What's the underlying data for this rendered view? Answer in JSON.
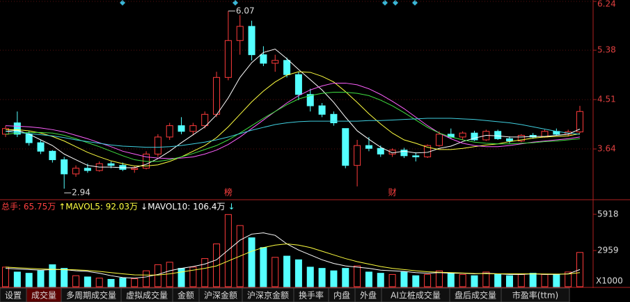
{
  "chart_data": [
    {
      "type": "candlestick",
      "open": [
        3.9,
        4.1,
        3.9,
        3.75,
        3.6,
        3.45,
        3.2,
        3.3,
        3.26,
        3.38,
        3.35,
        3.28,
        3.3,
        3.55,
        3.85,
        4.05,
        3.95,
        4.05,
        4.25,
        4.9,
        5.55,
        5.8,
        5.3,
        5.15,
        5.2,
        4.95,
        4.6,
        4.4,
        4.25,
        4.0,
        3.35,
        3.7,
        3.65,
        3.55,
        3.62,
        3.52,
        3.5,
        3.7,
        3.9,
        3.85,
        3.92,
        3.8,
        3.95,
        3.82,
        3.78,
        3.88,
        3.85,
        3.95,
        3.9,
        3.94
      ],
      "high": [
        4.05,
        4.3,
        3.95,
        3.8,
        3.62,
        3.5,
        3.35,
        3.38,
        3.42,
        3.42,
        3.4,
        3.34,
        3.6,
        3.9,
        4.1,
        4.2,
        4.1,
        4.3,
        5.0,
        6.07,
        6.0,
        5.9,
        5.45,
        5.3,
        5.25,
        5.0,
        4.7,
        4.45,
        4.3,
        4.0,
        3.8,
        3.85,
        3.7,
        3.65,
        3.66,
        3.58,
        3.72,
        3.95,
        4.0,
        3.95,
        3.96,
        3.98,
        3.98,
        3.86,
        3.9,
        3.92,
        3.98,
        4.0,
        3.98,
        4.4
      ],
      "low": [
        3.85,
        3.85,
        3.7,
        3.55,
        3.4,
        2.94,
        3.15,
        3.22,
        3.24,
        3.3,
        3.25,
        3.22,
        3.28,
        3.5,
        3.8,
        3.9,
        3.88,
        4.0,
        4.2,
        4.85,
        5.3,
        5.2,
        5.1,
        5.0,
        4.9,
        4.5,
        4.3,
        4.2,
        4.05,
        3.3,
        2.98,
        3.6,
        3.5,
        3.5,
        3.48,
        3.42,
        3.48,
        3.68,
        3.82,
        3.8,
        3.78,
        3.78,
        3.8,
        3.74,
        3.76,
        3.82,
        3.84,
        3.88,
        3.86,
        3.92
      ],
      "close": [
        4.0,
        3.9,
        3.75,
        3.6,
        3.45,
        3.2,
        3.3,
        3.26,
        3.38,
        3.35,
        3.28,
        3.3,
        3.55,
        3.85,
        4.05,
        3.95,
        4.05,
        4.25,
        4.9,
        5.55,
        5.8,
        5.3,
        5.15,
        5.2,
        4.95,
        4.6,
        4.4,
        4.25,
        4.1,
        3.35,
        3.7,
        3.65,
        3.55,
        3.62,
        3.52,
        3.5,
        3.7,
        3.9,
        3.85,
        3.92,
        3.8,
        3.95,
        3.82,
        3.78,
        3.88,
        3.85,
        3.95,
        3.9,
        3.94,
        4.3
      ],
      "up_color": "#ff3b3b",
      "down_color": "#54ffff",
      "lines": [
        {
          "color": "#ffffff",
          "values": [
            3.95,
            3.97,
            3.9,
            3.8,
            3.7,
            3.55,
            3.45,
            3.35,
            3.32,
            3.32,
            3.31,
            3.31,
            3.37,
            3.47,
            3.6,
            3.75,
            3.89,
            4.03,
            4.24,
            4.54,
            4.9,
            5.16,
            5.34,
            5.4,
            5.23,
            5.04,
            4.86,
            4.68,
            4.46,
            4.2,
            3.96,
            3.81,
            3.67,
            3.57,
            3.6,
            3.57,
            3.58,
            3.65,
            3.69,
            3.77,
            3.83,
            3.88,
            3.87,
            3.85,
            3.85,
            3.86,
            3.86,
            3.88,
            3.9,
            3.99
          ]
        },
        {
          "color": "#ffff40",
          "values": [
            3.98,
            3.98,
            3.96,
            3.92,
            3.86,
            3.78,
            3.68,
            3.58,
            3.5,
            3.43,
            3.38,
            3.34,
            3.34,
            3.36,
            3.42,
            3.5,
            3.6,
            3.7,
            3.84,
            4.03,
            4.25,
            4.47,
            4.66,
            4.82,
            4.94,
            5.0,
            4.99,
            4.92,
            4.82,
            4.65,
            4.46,
            4.26,
            4.08,
            3.92,
            3.8,
            3.74,
            3.67,
            3.63,
            3.63,
            3.65,
            3.68,
            3.71,
            3.73,
            3.77,
            3.8,
            3.83,
            3.85,
            3.86,
            3.87,
            3.91
          ]
        },
        {
          "color": "#ff60ff",
          "values": [
            4.05,
            4.04,
            4.03,
            4.01,
            3.98,
            3.94,
            3.88,
            3.82,
            3.75,
            3.68,
            3.6,
            3.55,
            3.5,
            3.48,
            3.47,
            3.48,
            3.5,
            3.55,
            3.62,
            3.72,
            3.85,
            4.0,
            4.15,
            4.3,
            4.45,
            4.58,
            4.68,
            4.75,
            4.8,
            4.8,
            4.77,
            4.7,
            4.6,
            4.48,
            4.35,
            4.2,
            4.05,
            3.92,
            3.82,
            3.74,
            3.7,
            3.68,
            3.68,
            3.7,
            3.73,
            3.76,
            3.78,
            3.8,
            3.82,
            3.85
          ]
        },
        {
          "color": "#40e040",
          "values": [
            3.9,
            3.92,
            3.93,
            3.93,
            3.92,
            3.88,
            3.82,
            3.75,
            3.68,
            3.6,
            3.52,
            3.45,
            3.42,
            3.42,
            3.45,
            3.5,
            3.56,
            3.63,
            3.7,
            3.8,
            3.92,
            4.05,
            4.18,
            4.3,
            4.42,
            4.52,
            4.58,
            4.62,
            4.64,
            4.64,
            4.62,
            4.58,
            4.5,
            4.4,
            4.28,
            4.15,
            4.02,
            3.92,
            3.85,
            3.8,
            3.76,
            3.74,
            3.73,
            3.73,
            3.74,
            3.75,
            3.77,
            3.78,
            3.8,
            3.82
          ]
        },
        {
          "color": "#40d0e0",
          "values": [
            3.95,
            3.93,
            3.91,
            3.89,
            3.87,
            3.84,
            3.8,
            3.77,
            3.74,
            3.71,
            3.69,
            3.68,
            3.67,
            3.67,
            3.68,
            3.7,
            3.73,
            3.76,
            3.8,
            3.85,
            3.91,
            3.97,
            4.02,
            4.07,
            4.1,
            4.12,
            4.13,
            4.13,
            4.13,
            4.13,
            4.13,
            4.14,
            4.14,
            4.15,
            4.16,
            4.17,
            4.18,
            4.18,
            4.18,
            4.17,
            4.16,
            4.14,
            4.12,
            4.1,
            4.07,
            4.03,
            3.99,
            3.95,
            3.92,
            3.9
          ]
        }
      ],
      "max_label": "6.07",
      "min_label": "2.94",
      "events": [
        {
          "index": 19,
          "label": "榜"
        },
        {
          "index": 33,
          "label": "财"
        }
      ],
      "ylim": [
        2.77,
        6.24
      ],
      "yticks": [
        6.24,
        5.38,
        4.51,
        3.64
      ],
      "grid": true
    },
    {
      "type": "volume",
      "legend": [
        {
          "label": "总手: 65.75万",
          "color": "#ff4040"
        },
        {
          "label": "↑MAVOL5: 92.03万",
          "color": "#ffff40"
        },
        {
          "label": "↓MAVOL10: 106.4万",
          "color": "#ffffff"
        },
        {
          "label": "↓",
          "color": "#54ffff"
        }
      ],
      "values": [
        1600,
        1200,
        1100,
        1300,
        1800,
        1500,
        900,
        800,
        700,
        600,
        700,
        650,
        1300,
        1800,
        2000,
        1500,
        1600,
        2300,
        3500,
        5900,
        5000,
        4000,
        3200,
        2400,
        2500,
        2200,
        1600,
        1500,
        1300,
        1500,
        1700,
        1200,
        1100,
        1000,
        1200,
        900,
        1000,
        1300,
        1100,
        1000,
        900,
        1200,
        1000,
        900,
        1000,
        1100,
        1000,
        1000,
        1200,
        2800
      ],
      "lines": [
        {
          "color": "#ffffff",
          "values": [
            1500,
            1450,
            1400,
            1350,
            1400,
            1400,
            1300,
            1250,
            1100,
            900,
            750,
            700,
            800,
            1000,
            1300,
            1500,
            1650,
            1850,
            2200,
            3000,
            3800,
            4300,
            4400,
            4200,
            3500,
            3000,
            2600,
            2200,
            1900,
            1700,
            1600,
            1500,
            1350,
            1300,
            1250,
            1150,
            1100,
            1150,
            1100,
            1100,
            1050,
            1100,
            1050,
            1000,
            1000,
            1050,
            1000,
            1000,
            1050,
            1400
          ]
        },
        {
          "color": "#ffff40",
          "values": [
            1600,
            1550,
            1500,
            1450,
            1420,
            1400,
            1380,
            1330,
            1250,
            1150,
            1050,
            970,
            950,
            950,
            1050,
            1200,
            1350,
            1500,
            1700,
            2100,
            2500,
            2900,
            3200,
            3400,
            3500,
            3400,
            3200,
            2900,
            2600,
            2300,
            2050,
            1850,
            1650,
            1500,
            1400,
            1300,
            1220,
            1180,
            1150,
            1120,
            1080,
            1070,
            1050,
            1050,
            1050,
            1050,
            1040,
            1030,
            1040,
            1150
          ]
        }
      ],
      "unit_label": "X1000",
      "ylim": [
        0,
        5918
      ],
      "yticks": [
        5918,
        2959
      ]
    }
  ],
  "tabs": [
    "设置",
    "成交量",
    "多周期成交量",
    "虚拟成交量",
    "金额",
    "沪深金额",
    "沪深京金额",
    "换手率",
    "内盘",
    "外盘",
    "AI立桩成交量",
    "盘后成交量",
    "市盈率(ttm)"
  ],
  "active_tab": 1
}
